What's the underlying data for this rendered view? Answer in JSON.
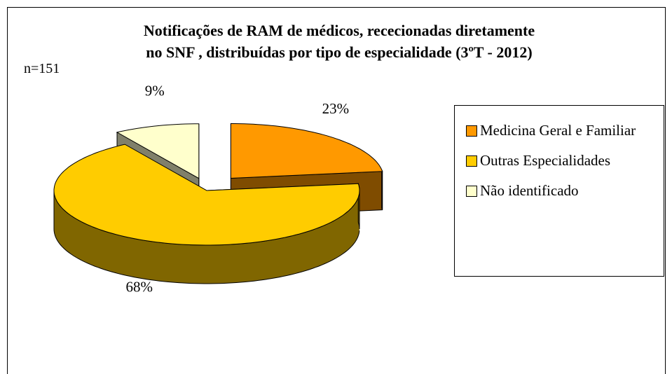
{
  "chart_data": {
    "type": "pie3d",
    "title": [
      "Notificações de RAM de médicos, rececionadas  diretamente",
      "no SNF , distribuídas por tipo de especialidade (3ºT - 2012)"
    ],
    "annotation": "n=151",
    "categories": [
      "Medicina Geral e Familiar",
      "Outras Especialidades",
      "Não identificado"
    ],
    "values": [
      23,
      68,
      9
    ],
    "value_labels": [
      "23%",
      "68%",
      "9%"
    ],
    "colors": [
      "#FF9900",
      "#FFCC00",
      "#FFFFCC"
    ],
    "side_colors": [
      "#7F4C00",
      "#806600",
      "#80806A"
    ],
    "legend": "right"
  }
}
